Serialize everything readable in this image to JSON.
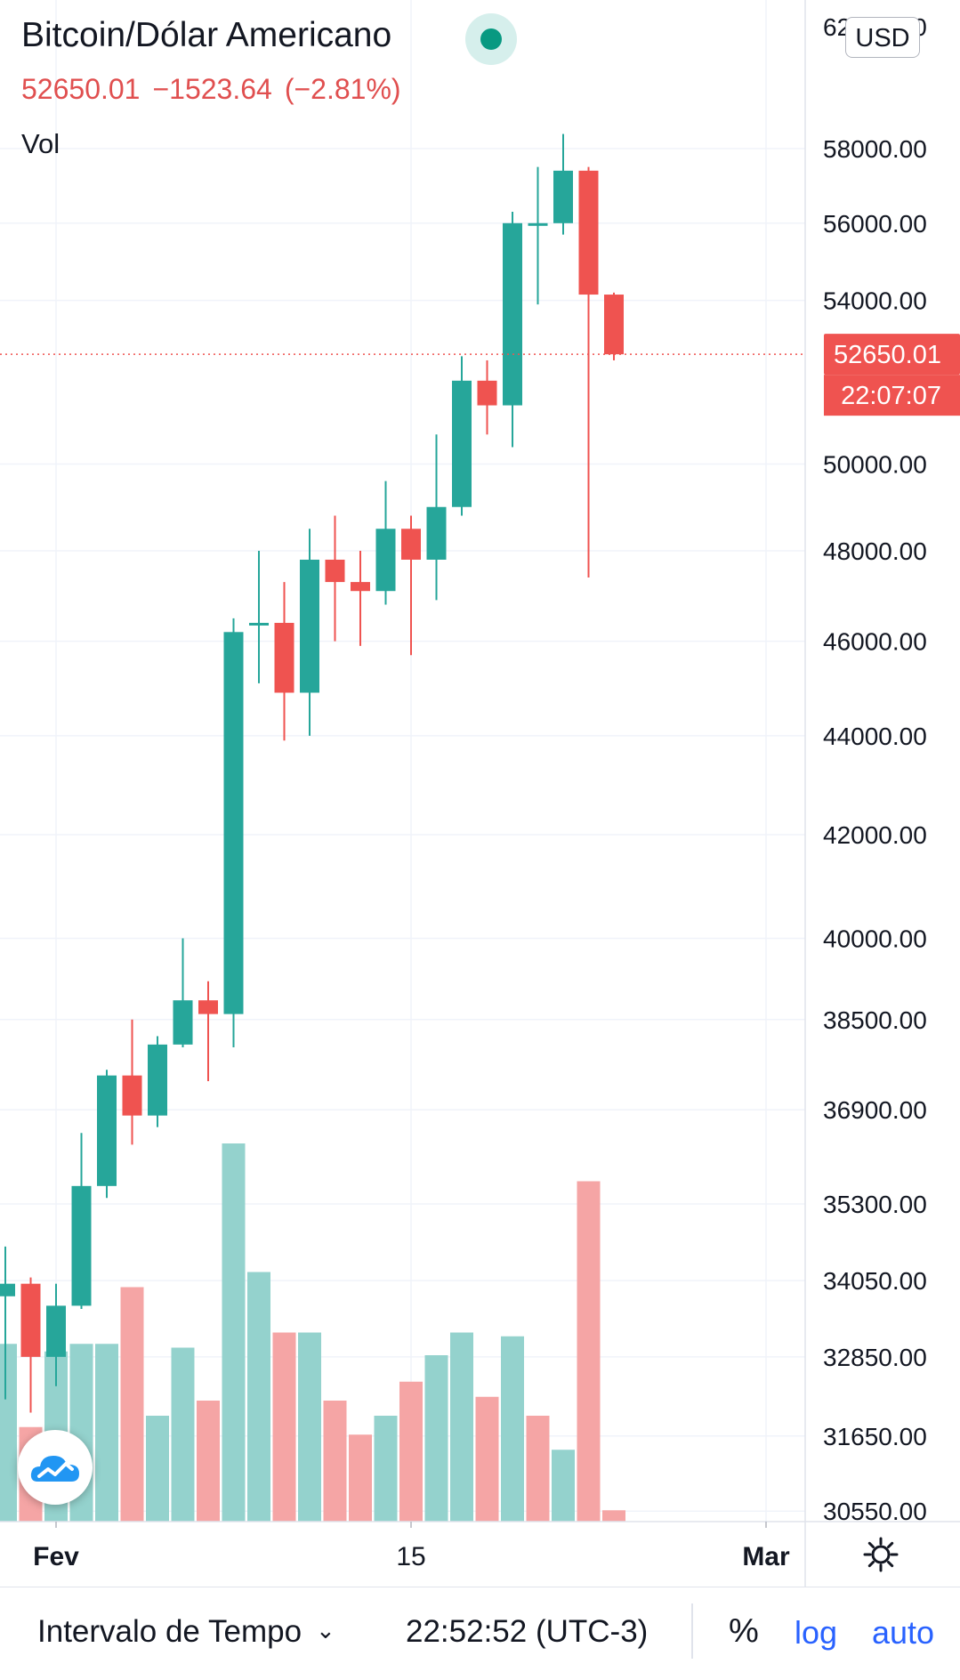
{
  "header": {
    "title": "Bitcoin/Dólar Americano",
    "last_price": "52650.01",
    "change": "−1523.64",
    "change_pct": "(−2.81%)",
    "volume_label": "Vol",
    "currency": "USD"
  },
  "price_axis": {
    "top_label_partial": "62000.00",
    "last_price_tag": "52650.01",
    "countdown_tag": "22:07:07",
    "ticks": [
      "58000.00",
      "56000.00",
      "54000.00",
      "50000.00",
      "48000.00",
      "46000.00",
      "44000.00",
      "42000.00",
      "40000.00",
      "38500.00",
      "36900.00",
      "35300.00",
      "34050.00",
      "32850.00",
      "31650.00",
      "30550.00"
    ]
  },
  "time_axis": {
    "labels": [
      "Fev",
      "15",
      "Mar"
    ]
  },
  "bottom_bar": {
    "interval_label": "Intervalo de Tempo",
    "clock": "22:52:52 (UTC-3)",
    "percent_label": "%",
    "log_label": "log",
    "auto_label": "auto"
  },
  "icons": {
    "live": "live-status-dot",
    "logo": "tradingview-cloud-icon",
    "settings": "gear-icon",
    "dropdown": "chevron-down-icon"
  },
  "colors": {
    "up": "#26a69a",
    "down": "#ef5350",
    "vol_up": "#94d2cd",
    "vol_down": "#f5a5a5",
    "link": "#2962ff"
  },
  "chart_data": {
    "type": "candlestick",
    "scale": "log",
    "ylim": [
      30400,
      62200
    ],
    "ticks": [
      58000,
      56000,
      54000,
      50000,
      48000,
      46000,
      44000,
      42000,
      40000,
      38500,
      36900,
      35300,
      34050,
      32850,
      31650,
      30550
    ],
    "x_labels": [
      {
        "day": 1,
        "label": "Fev"
      },
      {
        "day": 15,
        "label": "15"
      },
      {
        "day": 29,
        "label": "Mar"
      }
    ],
    "last_price": 52650.01,
    "candles": [
      {
        "day": -1,
        "o": 33800,
        "h": 34600,
        "l": 32200,
        "c": 34000
      },
      {
        "day": 0,
        "o": 34000,
        "h": 34100,
        "l": 32000,
        "c": 32850
      },
      {
        "day": 1,
        "o": 32850,
        "h": 34000,
        "l": 32400,
        "c": 33650
      },
      {
        "day": 2,
        "o": 33650,
        "h": 36500,
        "l": 33600,
        "c": 35600
      },
      {
        "day": 3,
        "o": 35600,
        "h": 37600,
        "l": 35400,
        "c": 37500
      },
      {
        "day": 4,
        "o": 37500,
        "h": 38500,
        "l": 36300,
        "c": 36800
      },
      {
        "day": 5,
        "o": 36800,
        "h": 38200,
        "l": 36600,
        "c": 38050
      },
      {
        "day": 6,
        "o": 38050,
        "h": 40000,
        "l": 38000,
        "c": 38850
      },
      {
        "day": 7,
        "o": 38850,
        "h": 39200,
        "l": 37400,
        "c": 38600
      },
      {
        "day": 8,
        "o": 38600,
        "h": 46500,
        "l": 38000,
        "c": 46200
      },
      {
        "day": 9,
        "o": 46400,
        "h": 48000,
        "l": 45100,
        "c": 46400
      },
      {
        "day": 10,
        "o": 46400,
        "h": 47300,
        "l": 43900,
        "c": 44900
      },
      {
        "day": 11,
        "o": 44900,
        "h": 48500,
        "l": 44000,
        "c": 47800
      },
      {
        "day": 12,
        "o": 47800,
        "h": 48800,
        "l": 46000,
        "c": 47300
      },
      {
        "day": 13,
        "o": 47300,
        "h": 48000,
        "l": 45900,
        "c": 47100
      },
      {
        "day": 14,
        "o": 47100,
        "h": 49600,
        "l": 46800,
        "c": 48500
      },
      {
        "day": 15,
        "o": 48500,
        "h": 48800,
        "l": 45700,
        "c": 47800
      },
      {
        "day": 16,
        "o": 47800,
        "h": 50700,
        "l": 46900,
        "c": 49000
      },
      {
        "day": 17,
        "o": 49000,
        "h": 52600,
        "l": 48800,
        "c": 52000
      },
      {
        "day": 18,
        "o": 52000,
        "h": 52500,
        "l": 50700,
        "c": 51400
      },
      {
        "day": 19,
        "o": 51400,
        "h": 56300,
        "l": 50400,
        "c": 56000
      },
      {
        "day": 20,
        "o": 56000,
        "h": 57500,
        "l": 53900,
        "c": 56000
      },
      {
        "day": 21,
        "o": 56000,
        "h": 58400,
        "l": 55700,
        "c": 57400
      },
      {
        "day": 22,
        "o": 57400,
        "h": 57500,
        "l": 47400,
        "c": 54150
      },
      {
        "day": 23,
        "o": 54150,
        "h": 54200,
        "l": 52500,
        "c": 52650
      }
    ],
    "volume": [
      {
        "day": -1,
        "v": 47,
        "up": true
      },
      {
        "day": 0,
        "v": 25,
        "up": false
      },
      {
        "day": 1,
        "v": 45,
        "up": true
      },
      {
        "day": 2,
        "v": 47,
        "up": true
      },
      {
        "day": 3,
        "v": 47,
        "up": true
      },
      {
        "day": 4,
        "v": 62,
        "up": false
      },
      {
        "day": 5,
        "v": 28,
        "up": true
      },
      {
        "day": 6,
        "v": 46,
        "up": true
      },
      {
        "day": 7,
        "v": 32,
        "up": false
      },
      {
        "day": 8,
        "v": 100,
        "up": true
      },
      {
        "day": 9,
        "v": 66,
        "up": true
      },
      {
        "day": 10,
        "v": 50,
        "up": false
      },
      {
        "day": 11,
        "v": 50,
        "up": true
      },
      {
        "day": 12,
        "v": 32,
        "up": false
      },
      {
        "day": 13,
        "v": 23,
        "up": false
      },
      {
        "day": 14,
        "v": 28,
        "up": true
      },
      {
        "day": 15,
        "v": 37,
        "up": false
      },
      {
        "day": 16,
        "v": 44,
        "up": true
      },
      {
        "day": 17,
        "v": 50,
        "up": true
      },
      {
        "day": 18,
        "v": 33,
        "up": false
      },
      {
        "day": 19,
        "v": 49,
        "up": true
      },
      {
        "day": 20,
        "v": 28,
        "up": false
      },
      {
        "day": 21,
        "v": 19,
        "up": true
      },
      {
        "day": 22,
        "v": 90,
        "up": false
      },
      {
        "day": 23,
        "v": 3,
        "up": false
      }
    ]
  }
}
